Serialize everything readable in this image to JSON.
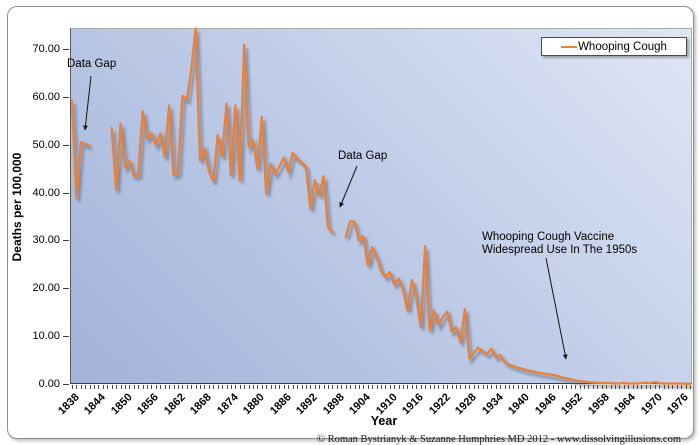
{
  "chart": {
    "legend": {
      "label": "Whooping Cough",
      "line_color": "#E8813A"
    },
    "y_axis": {
      "title": "Deaths per 100,000",
      "tick_labels": [
        "0.00",
        "10.00",
        "20.00",
        "30.00",
        "40.00",
        "50.00",
        "60.00",
        "70.00"
      ]
    },
    "x_axis": {
      "title": "Year",
      "tick_labels": [
        "1838",
        "1844",
        "1850",
        "1856",
        "1862",
        "1868",
        "1874",
        "1880",
        "1886",
        "1892",
        "1898",
        "1904",
        "1910",
        "1916",
        "1922",
        "1928",
        "1934",
        "1940",
        "1946",
        "1952",
        "1958",
        "1964",
        "1970",
        "1976"
      ]
    },
    "annotations": {
      "data_gap_1": "Data Gap",
      "data_gap_2": "Data Gap",
      "vaccine_line1": "Whooping Cough Vaccine",
      "vaccine_line2": "Widespread Use In The 1950s"
    },
    "copyright": "© Roman Bystrianyk & Suzanne Humphries MD 2012 - www.dissolvingillusions.com"
  },
  "chart_data": {
    "type": "line",
    "title": "",
    "xlabel": "Year",
    "ylabel": "Deaths per 100,000",
    "x_start": 1838,
    "x_end": 1978,
    "ylim": [
      0,
      74.4
    ],
    "y_ticks": [
      0,
      10,
      20,
      30,
      40,
      50,
      60,
      70
    ],
    "x_tick_years": [
      1838,
      1844,
      1850,
      1856,
      1862,
      1868,
      1874,
      1880,
      1886,
      1892,
      1898,
      1904,
      1910,
      1916,
      1922,
      1928,
      1934,
      1940,
      1946,
      1952,
      1958,
      1964,
      1970,
      1976
    ],
    "grid": false,
    "legend_position": "top-right",
    "data_gaps_years": [
      [
        1843,
        1846
      ],
      [
        1898,
        1899
      ]
    ],
    "series": [
      {
        "name": "Whooping Cough",
        "color": "#E8813A",
        "values": [
          59.2,
          38.8,
          50.5,
          50.2,
          49.8,
          null,
          null,
          null,
          null,
          53.5,
          40.6,
          54.4,
          45.3,
          46.6,
          43.5,
          43.6,
          57,
          51.3,
          52.4,
          49.9,
          52.3,
          47.4,
          58.2,
          43.7,
          44,
          60.2,
          59.5,
          65.5,
          74.9,
          46.7,
          49.2,
          44.6,
          42.4,
          52,
          47.5,
          58.6,
          43.6,
          58.2,
          42.6,
          70.9,
          49.5,
          50.9,
          45,
          55.8,
          39.8,
          46,
          43.9,
          45.5,
          47.3,
          44.3,
          48.3,
          47,
          46.4,
          45.3,
          36.6,
          42.6,
          39.4,
          43.4,
          32.8,
          31.8,
          null,
          null,
          30.7,
          34,
          33.9,
          30,
          30.9,
          24.8,
          28.6,
          26.5,
          23.7,
          22.4,
          23.4,
          20.9,
          22,
          19.6,
          15.4,
          21.7,
          18.2,
          11.9,
          28.8,
          11.2,
          15.4,
          12.3,
          14,
          15.1,
          11,
          11.9,
          8.7,
          15.7,
          5.4,
          6.5,
          7.6,
          6.9,
          6.3,
          7.4,
          5.6,
          6.1,
          4.6,
          4.1,
          3.7,
          3.4,
          3.2,
          2.9,
          2.7,
          2.5,
          2.3,
          2.2,
          2,
          1.9,
          1.7,
          1.4,
          1.2,
          1,
          0.8,
          0.6,
          0.5,
          0.4,
          0.3,
          0.3,
          0.2,
          0.2,
          0.2,
          0.1,
          0.1,
          0.2,
          0.1,
          0.1,
          0.1,
          0.2,
          0.3,
          0.2,
          0.4,
          0.2,
          0.1,
          0.1,
          0.1,
          0.1,
          0.1,
          0.05,
          0.05
        ]
      }
    ]
  }
}
